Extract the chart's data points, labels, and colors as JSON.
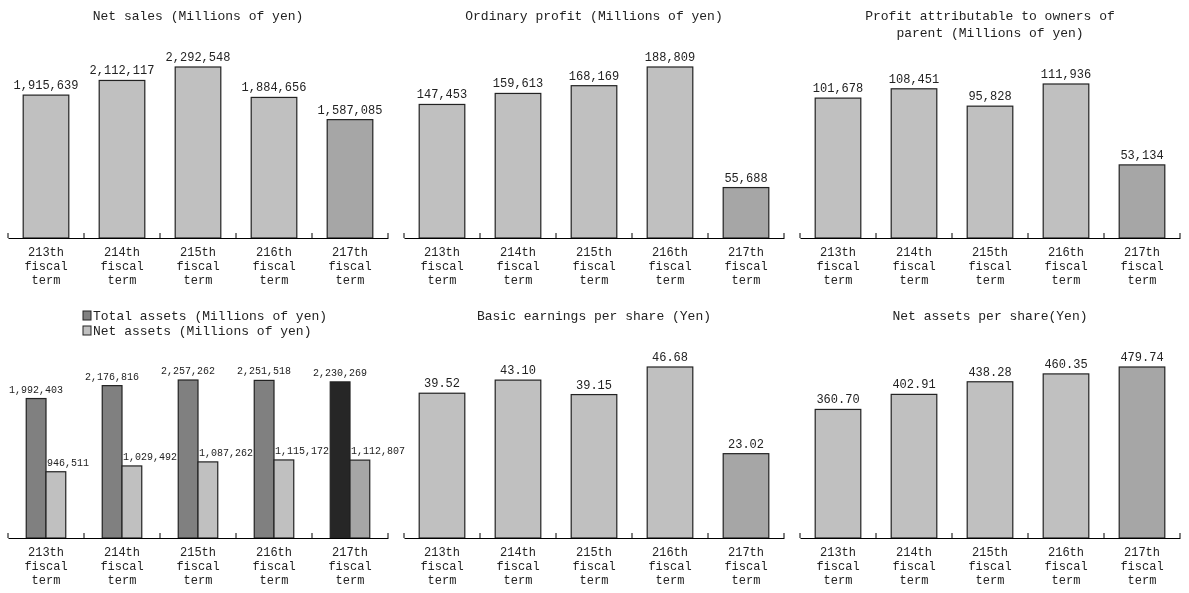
{
  "chart_data": [
    {
      "type": "bar",
      "title": "Net sales (Millions of yen)",
      "categories": [
        "213th fiscal term",
        "214th fiscal term",
        "215th fiscal term",
        "216th fiscal term",
        "217th fiscal term"
      ],
      "series": [
        {
          "colors": [
            "#c0c0c0",
            "#c0c0c0",
            "#c0c0c0",
            "#c0c0c0",
            "#a6a6a6"
          ],
          "values": [
            1915639,
            2112117,
            2292548,
            1884656,
            1587085
          ],
          "value_labels": [
            "1,915,639",
            "2,112,117",
            "2,292,548",
            "1,884,656",
            "1,587,085"
          ]
        }
      ]
    },
    {
      "type": "bar",
      "title": "Ordinary profit (Millions of yen)",
      "categories": [
        "213th fiscal term",
        "214th fiscal term",
        "215th fiscal term",
        "216th fiscal term",
        "217th fiscal term"
      ],
      "series": [
        {
          "colors": [
            "#c0c0c0",
            "#c0c0c0",
            "#c0c0c0",
            "#c0c0c0",
            "#a6a6a6"
          ],
          "values": [
            147453,
            159613,
            168169,
            188809,
            55688
          ],
          "value_labels": [
            "147,453",
            "159,613",
            "168,169",
            "188,809",
            "55,688"
          ]
        }
      ]
    },
    {
      "type": "bar",
      "title": "Profit attributable to owners of parent (Millions of yen)",
      "categories": [
        "213th fiscal term",
        "214th fiscal term",
        "215th fiscal term",
        "216th fiscal term",
        "217th fiscal term"
      ],
      "series": [
        {
          "colors": [
            "#c0c0c0",
            "#c0c0c0",
            "#c0c0c0",
            "#c0c0c0",
            "#a6a6a6"
          ],
          "values": [
            101678,
            108451,
            95828,
            111936,
            53134
          ],
          "value_labels": [
            "101,678",
            "108,451",
            "95,828",
            "111,936",
            "53,134"
          ]
        }
      ]
    },
    {
      "type": "bar",
      "legend": "top",
      "categories": [
        "213th fiscal term",
        "214th fiscal term",
        "215th fiscal term",
        "216th fiscal term",
        "217th fiscal term"
      ],
      "series": [
        {
          "name": "Total assets (Millions of yen)",
          "color": "#808080",
          "colors": [
            "#808080",
            "#808080",
            "#808080",
            "#808080",
            "#262626"
          ],
          "values": [
            1992403,
            2176816,
            2257262,
            2251518,
            2230269
          ],
          "value_labels": [
            "1,992,403",
            "2,176,816",
            "2,257,262",
            "2,251,518",
            "2,230,269"
          ]
        },
        {
          "name": "Net assets (Millions of yen)",
          "color": "#c0c0c0",
          "colors": [
            "#c0c0c0",
            "#c0c0c0",
            "#c0c0c0",
            "#c0c0c0",
            "#a6a6a6"
          ],
          "values": [
            946511,
            1029492,
            1087262,
            1115172,
            1112807
          ],
          "value_labels": [
            "946,511",
            "1,029,492",
            "1,087,262",
            "1,115,172",
            "1,112,807"
          ]
        }
      ]
    },
    {
      "type": "bar",
      "title": "Basic earnings per share (Yen)",
      "categories": [
        "213th fiscal term",
        "214th fiscal term",
        "215th fiscal term",
        "216th fiscal term",
        "217th fiscal term"
      ],
      "series": [
        {
          "colors": [
            "#c0c0c0",
            "#c0c0c0",
            "#c0c0c0",
            "#c0c0c0",
            "#a6a6a6"
          ],
          "values": [
            39.52,
            43.1,
            39.15,
            46.68,
            23.02
          ],
          "value_labels": [
            "39.52",
            "43.10",
            "39.15",
            "46.68",
            "23.02"
          ]
        }
      ]
    },
    {
      "type": "bar",
      "title": "Net assets per share(Yen)",
      "categories": [
        "213th fiscal term",
        "214th fiscal term",
        "215th fiscal term",
        "216th fiscal term",
        "217th fiscal term"
      ],
      "series": [
        {
          "colors": [
            "#c0c0c0",
            "#c0c0c0",
            "#c0c0c0",
            "#c0c0c0",
            "#a6a6a6"
          ],
          "values": [
            360.7,
            402.91,
            438.28,
            460.35,
            479.74
          ],
          "value_labels": [
            "360.70",
            "402.91",
            "438.28",
            "460.35",
            "479.74"
          ]
        }
      ]
    }
  ]
}
